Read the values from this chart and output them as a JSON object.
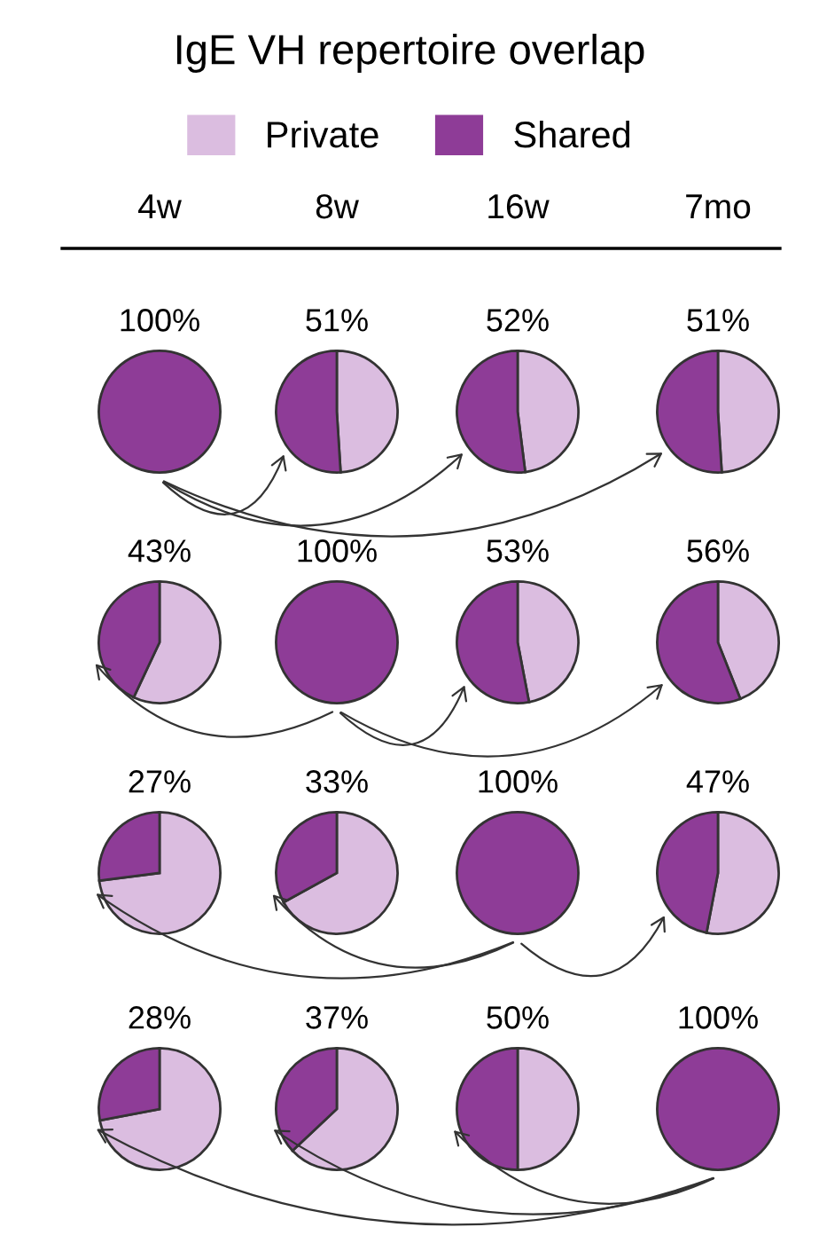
{
  "chart_data": [
    {
      "type": "other",
      "title": "IgE VH repertoire overlap",
      "annotations": [
        "4w",
        "8w",
        "16w",
        "7mo"
      ]
    },
    {
      "type": "pie",
      "categories": [
        "Private",
        "Shared"
      ],
      "values": [
        0,
        100
      ],
      "colors": [
        "#dbbde0",
        "#8e3c97"
      ],
      "value_labels": [
        null,
        "100%"
      ],
      "legend": "top"
    },
    {
      "type": "pie",
      "values": [
        49,
        51
      ],
      "colors": [
        "#dbbde0",
        "#8e3c97"
      ],
      "value_labels": [
        null,
        "51%"
      ]
    },
    {
      "type": "pie",
      "values": [
        48,
        52
      ],
      "colors": [
        "#dbbde0",
        "#8e3c97"
      ],
      "value_labels": [
        null,
        "52%"
      ]
    },
    {
      "type": "pie",
      "values": [
        49,
        51
      ],
      "colors": [
        "#dbbde0",
        "#8e3c97"
      ],
      "value_labels": [
        null,
        "51%"
      ]
    },
    {
      "type": "pie",
      "values": [
        57,
        43
      ],
      "colors": [
        "#dbbde0",
        "#8e3c97"
      ],
      "value_labels": [
        null,
        "43%"
      ]
    },
    {
      "type": "pie",
      "values": [
        0,
        100
      ],
      "colors": [
        "#dbbde0",
        "#8e3c97"
      ],
      "value_labels": [
        null,
        "100%"
      ]
    },
    {
      "type": "pie",
      "values": [
        47,
        53
      ],
      "colors": [
        "#dbbde0",
        "#8e3c97"
      ],
      "value_labels": [
        null,
        "53%"
      ]
    },
    {
      "type": "pie",
      "values": [
        44,
        56
      ],
      "colors": [
        "#dbbde0",
        "#8e3c97"
      ],
      "value_labels": [
        null,
        "56%"
      ]
    },
    {
      "type": "pie",
      "values": [
        73,
        27
      ],
      "colors": [
        "#dbbde0",
        "#8e3c97"
      ],
      "value_labels": [
        null,
        "27%"
      ]
    },
    {
      "type": "pie",
      "values": [
        67,
        33
      ],
      "colors": [
        "#dbbde0",
        "#8e3c97"
      ],
      "value_labels": [
        null,
        "33%"
      ]
    },
    {
      "type": "pie",
      "values": [
        0,
        100
      ],
      "colors": [
        "#dbbde0",
        "#8e3c97"
      ],
      "value_labels": [
        null,
        "100%"
      ]
    },
    {
      "type": "pie",
      "values": [
        53,
        47
      ],
      "colors": [
        "#dbbde0",
        "#8e3c97"
      ],
      "value_labels": [
        null,
        "47%"
      ]
    },
    {
      "type": "pie",
      "values": [
        72,
        28
      ],
      "colors": [
        "#dbbde0",
        "#8e3c97"
      ],
      "value_labels": [
        null,
        "28%"
      ]
    },
    {
      "type": "pie",
      "values": [
        63,
        37
      ],
      "colors": [
        "#dbbde0",
        "#8e3c97"
      ],
      "value_labels": [
        null,
        "37%"
      ]
    },
    {
      "type": "pie",
      "values": [
        50,
        50
      ],
      "colors": [
        "#dbbde0",
        "#8e3c97"
      ],
      "value_labels": [
        null,
        "50%"
      ]
    },
    {
      "type": "pie",
      "values": [
        0,
        100
      ],
      "colors": [
        "#dbbde0",
        "#8e3c97"
      ],
      "value_labels": [
        null,
        "100%"
      ]
    }
  ]
}
